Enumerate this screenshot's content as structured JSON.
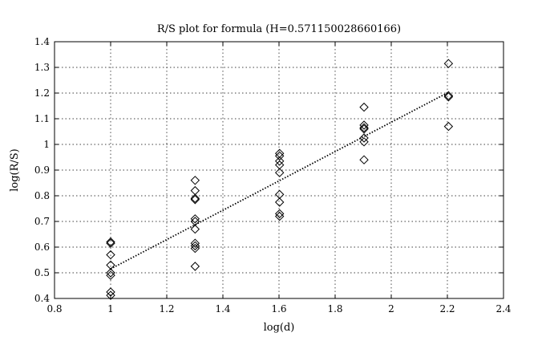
{
  "chart_data": {
    "type": "scatter",
    "title": "R/S plot for formula (H=0.571150028660166)",
    "xlabel": "log(d)",
    "ylabel": "log(R/S)",
    "xlim": [
      0.8,
      2.4
    ],
    "ylim": [
      0.4,
      1.4
    ],
    "xticks": [
      0.8,
      1.0,
      1.2,
      1.4,
      1.6,
      1.8,
      2.0,
      2.2,
      2.4
    ],
    "xtick_labels": [
      "0.8",
      "1",
      "1.2",
      "1.4",
      "1.6",
      "1.8",
      "2",
      "2.2",
      "2.4"
    ],
    "yticks": [
      0.4,
      0.5,
      0.6,
      0.7,
      0.8,
      0.9,
      1.0,
      1.1,
      1.2,
      1.3,
      1.4
    ],
    "ytick_labels": [
      "0.4",
      "0.5",
      "0.6",
      "0.7",
      "0.8",
      "0.9",
      "1",
      "1.1",
      "1.2",
      "1.3",
      "1.4"
    ],
    "grid": true,
    "series": [
      {
        "marker": "diamond",
        "color": "#000000",
        "points": [
          [
            1.0,
            0.62
          ],
          [
            1.0,
            0.615
          ],
          [
            1.0,
            0.57
          ],
          [
            1.0,
            0.53
          ],
          [
            1.0,
            0.5
          ],
          [
            1.0,
            0.49
          ],
          [
            1.0,
            0.425
          ],
          [
            1.0,
            0.412
          ],
          [
            1.301,
            0.86
          ],
          [
            1.301,
            0.82
          ],
          [
            1.301,
            0.79
          ],
          [
            1.301,
            0.785
          ],
          [
            1.301,
            0.71
          ],
          [
            1.301,
            0.7
          ],
          [
            1.301,
            0.67
          ],
          [
            1.301,
            0.615
          ],
          [
            1.301,
            0.605
          ],
          [
            1.301,
            0.595
          ],
          [
            1.301,
            0.525
          ],
          [
            1.602,
            0.965
          ],
          [
            1.602,
            0.955
          ],
          [
            1.602,
            0.935
          ],
          [
            1.602,
            0.92
          ],
          [
            1.602,
            0.89
          ],
          [
            1.602,
            0.805
          ],
          [
            1.602,
            0.775
          ],
          [
            1.602,
            0.73
          ],
          [
            1.602,
            0.72
          ],
          [
            1.903,
            1.145
          ],
          [
            1.903,
            1.075
          ],
          [
            1.903,
            1.065
          ],
          [
            1.903,
            1.06
          ],
          [
            1.903,
            1.025
          ],
          [
            1.903,
            1.01
          ],
          [
            1.903,
            0.94
          ],
          [
            2.204,
            1.315
          ],
          [
            2.204,
            1.19
          ],
          [
            2.204,
            1.185
          ],
          [
            2.204,
            1.07
          ]
        ]
      },
      {
        "type": "line",
        "style": "dotted",
        "color": "#000000",
        "points": [
          [
            1.0,
            0.515
          ],
          [
            2.204,
            1.203
          ]
        ]
      }
    ]
  }
}
